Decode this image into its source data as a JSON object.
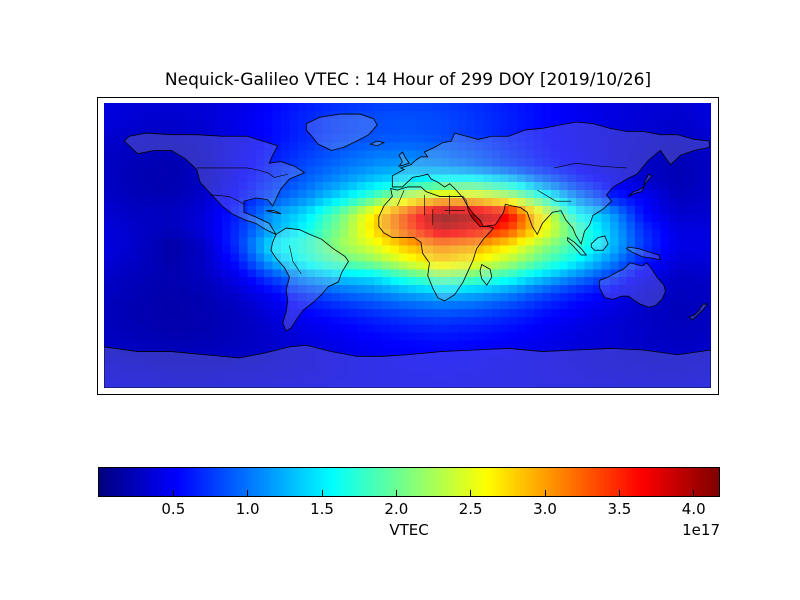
{
  "chart_data": {
    "type": "heatmap",
    "title": "Nequick-Galileo VTEC : 14 Hour of 299 DOY [2019/10/26]",
    "model": "Nequick-Galileo",
    "quantity": "VTEC",
    "hour": 14,
    "day_of_year": 299,
    "date": "2019/10/26",
    "projection": "equirectangular world map with coastlines",
    "extent": {
      "lon_min": -180,
      "lon_max": 180,
      "lat_min": -90,
      "lat_max": 90
    },
    "cell_size_deg": {
      "lon": 5,
      "lat": 5
    },
    "colormap": "jet",
    "colorbar": {
      "orientation": "horizontal",
      "label": "VTEC",
      "offset_text": "1e17",
      "vmin": 0,
      "vmax": 4.17,
      "ticks": [
        0.5,
        1.0,
        1.5,
        2.0,
        2.5,
        3.0,
        3.5,
        4.0
      ],
      "tick_labels": [
        "0.5",
        "1.0",
        "1.5",
        "2.0",
        "2.5",
        "3.0",
        "3.5",
        "4.0"
      ]
    },
    "grid": {
      "scale": "1e17",
      "lon": [
        -180,
        -160,
        -140,
        -120,
        -100,
        -80,
        -60,
        -40,
        -20,
        0,
        20,
        40,
        60,
        80,
        100,
        120,
        140,
        160,
        180
      ],
      "lat": [
        90,
        80,
        70,
        60,
        50,
        40,
        30,
        20,
        10,
        0,
        -10,
        -20,
        -30,
        -40,
        -50,
        -60,
        -70,
        -80,
        -90
      ],
      "values": [
        [
          0.4,
          0.36,
          0.34,
          0.36,
          0.42,
          0.52,
          0.62,
          0.7,
          0.76,
          0.78,
          0.76,
          0.7,
          0.62,
          0.54,
          0.46,
          0.4,
          0.36,
          0.34,
          0.4
        ],
        [
          0.38,
          0.34,
          0.32,
          0.35,
          0.44,
          0.56,
          0.68,
          0.78,
          0.84,
          0.86,
          0.82,
          0.74,
          0.65,
          0.55,
          0.47,
          0.4,
          0.35,
          0.32,
          0.38
        ],
        [
          0.34,
          0.3,
          0.28,
          0.32,
          0.42,
          0.55,
          0.68,
          0.78,
          0.84,
          0.86,
          0.82,
          0.74,
          0.64,
          0.54,
          0.46,
          0.39,
          0.33,
          0.29,
          0.34
        ],
        [
          0.3,
          0.26,
          0.24,
          0.3,
          0.44,
          0.6,
          0.75,
          0.88,
          0.97,
          1.0,
          0.95,
          0.84,
          0.7,
          0.57,
          0.47,
          0.38,
          0.3,
          0.25,
          0.3
        ],
        [
          0.28,
          0.22,
          0.2,
          0.28,
          0.46,
          0.65,
          0.83,
          0.98,
          1.12,
          1.18,
          1.12,
          0.98,
          0.8,
          0.63,
          0.5,
          0.39,
          0.29,
          0.22,
          0.28
        ],
        [
          0.28,
          0.22,
          0.2,
          0.28,
          0.5,
          0.72,
          0.93,
          1.15,
          1.38,
          1.55,
          1.7,
          1.72,
          1.5,
          1.05,
          0.7,
          0.48,
          0.32,
          0.22,
          0.28
        ],
        [
          0.3,
          0.24,
          0.22,
          0.32,
          0.58,
          0.85,
          1.1,
          1.45,
          1.9,
          2.45,
          2.75,
          2.7,
          2.4,
          1.75,
          1.1,
          0.68,
          0.5,
          0.26,
          0.3
        ],
        [
          0.34,
          0.28,
          0.26,
          0.38,
          0.66,
          1.15,
          1.45,
          2.0,
          2.7,
          3.4,
          4.15,
          4.0,
          3.7,
          2.6,
          1.6,
          1.2,
          0.55,
          0.32,
          0.34
        ],
        [
          0.38,
          0.3,
          0.24,
          0.38,
          0.72,
          1.2,
          1.6,
          2.1,
          2.75,
          3.35,
          3.9,
          3.7,
          3.4,
          2.65,
          1.9,
          1.3,
          0.7,
          0.4,
          0.38
        ],
        [
          0.4,
          0.3,
          0.16,
          0.3,
          0.75,
          1.5,
          1.75,
          2.2,
          2.5,
          2.9,
          3.1,
          3.0,
          2.7,
          2.2,
          1.8,
          1.35,
          0.75,
          0.42,
          0.4
        ],
        [
          0.36,
          0.28,
          0.18,
          0.3,
          0.62,
          1.25,
          1.65,
          1.95,
          2.15,
          2.5,
          2.8,
          2.6,
          2.3,
          1.9,
          1.55,
          1.1,
          0.62,
          0.36,
          0.36
        ],
        [
          0.3,
          0.24,
          0.2,
          0.26,
          0.45,
          0.8,
          1.15,
          1.35,
          1.45,
          1.8,
          2.05,
          1.95,
          1.7,
          1.35,
          1.05,
          0.75,
          0.45,
          0.28,
          0.3
        ],
        [
          0.28,
          0.22,
          0.18,
          0.22,
          0.34,
          0.52,
          0.75,
          0.92,
          1.05,
          1.2,
          1.32,
          1.25,
          1.08,
          0.85,
          0.65,
          0.5,
          0.35,
          0.26,
          0.28
        ],
        [
          0.26,
          0.2,
          0.17,
          0.2,
          0.27,
          0.4,
          0.55,
          0.66,
          0.76,
          0.86,
          0.92,
          0.87,
          0.76,
          0.62,
          0.5,
          0.4,
          0.3,
          0.24,
          0.26
        ],
        [
          0.26,
          0.21,
          0.18,
          0.2,
          0.25,
          0.34,
          0.44,
          0.52,
          0.6,
          0.66,
          0.7,
          0.66,
          0.6,
          0.5,
          0.42,
          0.35,
          0.29,
          0.25,
          0.26
        ],
        [
          0.28,
          0.24,
          0.21,
          0.22,
          0.26,
          0.31,
          0.38,
          0.45,
          0.51,
          0.55,
          0.57,
          0.55,
          0.5,
          0.45,
          0.39,
          0.34,
          0.3,
          0.27,
          0.28
        ],
        [
          0.32,
          0.28,
          0.26,
          0.26,
          0.28,
          0.32,
          0.36,
          0.41,
          0.45,
          0.48,
          0.5,
          0.48,
          0.45,
          0.41,
          0.37,
          0.34,
          0.31,
          0.3,
          0.32
        ],
        [
          0.36,
          0.33,
          0.31,
          0.31,
          0.32,
          0.35,
          0.38,
          0.41,
          0.44,
          0.46,
          0.47,
          0.46,
          0.44,
          0.41,
          0.38,
          0.36,
          0.34,
          0.33,
          0.36
        ],
        [
          0.4,
          0.38,
          0.37,
          0.37,
          0.38,
          0.39,
          0.41,
          0.43,
          0.45,
          0.46,
          0.46,
          0.45,
          0.44,
          0.42,
          0.4,
          0.39,
          0.38,
          0.38,
          0.4
        ]
      ]
    }
  }
}
